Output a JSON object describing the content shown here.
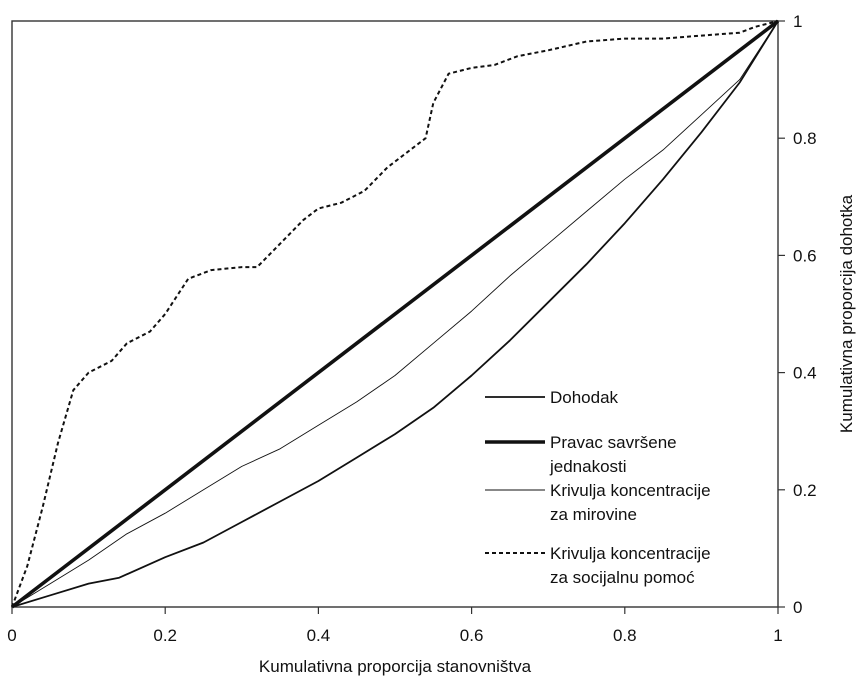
{
  "chart_data": {
    "type": "line",
    "xlabel": "Kumulativna proporcija stanovništva",
    "ylabel": "Kumulativna proporcija dohotka",
    "xlim": [
      0,
      1
    ],
    "ylim": [
      0,
      1
    ],
    "x_ticks": [
      "0",
      "0.2",
      "0.4",
      "0.6",
      "0.8",
      "1"
    ],
    "y_ticks": [
      "0",
      "0.2",
      "0.4",
      "0.6",
      "0.8",
      "1"
    ],
    "y_axis_side": "right",
    "grid": false,
    "legend_position": "bottom-right",
    "series": [
      {
        "name": "Dohodak",
        "style": "solid-medium",
        "points": [
          [
            0,
            0
          ],
          [
            0.05,
            0.02
          ],
          [
            0.1,
            0.04
          ],
          [
            0.14,
            0.05
          ],
          [
            0.2,
            0.085
          ],
          [
            0.25,
            0.11
          ],
          [
            0.3,
            0.145
          ],
          [
            0.35,
            0.18
          ],
          [
            0.4,
            0.215
          ],
          [
            0.45,
            0.255
          ],
          [
            0.5,
            0.295
          ],
          [
            0.55,
            0.34
          ],
          [
            0.6,
            0.395
          ],
          [
            0.65,
            0.455
          ],
          [
            0.7,
            0.52
          ],
          [
            0.75,
            0.585
          ],
          [
            0.8,
            0.655
          ],
          [
            0.85,
            0.73
          ],
          [
            0.9,
            0.81
          ],
          [
            0.95,
            0.895
          ],
          [
            1,
            1
          ]
        ]
      },
      {
        "name": "Pravac savršene jednakosti",
        "legend_lines": [
          "Pravac savršene",
          "jednakosti"
        ],
        "style": "solid-thick",
        "points": [
          [
            0,
            0
          ],
          [
            1,
            1
          ]
        ]
      },
      {
        "name": "Krivulja koncentracije za mirovine",
        "legend_lines": [
          "Krivulja koncentracije",
          "za mirovine"
        ],
        "style": "solid-thin",
        "points": [
          [
            0,
            0
          ],
          [
            0.05,
            0.04
          ],
          [
            0.1,
            0.08
          ],
          [
            0.15,
            0.125
          ],
          [
            0.2,
            0.16
          ],
          [
            0.25,
            0.2
          ],
          [
            0.3,
            0.24
          ],
          [
            0.35,
            0.27
          ],
          [
            0.4,
            0.31
          ],
          [
            0.45,
            0.35
          ],
          [
            0.5,
            0.395
          ],
          [
            0.55,
            0.45
          ],
          [
            0.6,
            0.505
          ],
          [
            0.65,
            0.565
          ],
          [
            0.7,
            0.62
          ],
          [
            0.75,
            0.675
          ],
          [
            0.8,
            0.73
          ],
          [
            0.85,
            0.78
          ],
          [
            0.9,
            0.84
          ],
          [
            0.95,
            0.9
          ],
          [
            1,
            1
          ]
        ]
      },
      {
        "name": "Krivulja koncentracije za socijalnu pomoć",
        "legend_lines": [
          "Krivulja koncentracije",
          "za socijalnu pomoć"
        ],
        "style": "dashed",
        "points": [
          [
            0,
            0
          ],
          [
            0.02,
            0.07
          ],
          [
            0.04,
            0.17
          ],
          [
            0.06,
            0.28
          ],
          [
            0.08,
            0.37
          ],
          [
            0.1,
            0.4
          ],
          [
            0.13,
            0.42
          ],
          [
            0.15,
            0.45
          ],
          [
            0.18,
            0.47
          ],
          [
            0.2,
            0.5
          ],
          [
            0.23,
            0.56
          ],
          [
            0.26,
            0.575
          ],
          [
            0.3,
            0.58
          ],
          [
            0.32,
            0.58
          ],
          [
            0.35,
            0.62
          ],
          [
            0.38,
            0.66
          ],
          [
            0.4,
            0.68
          ],
          [
            0.43,
            0.69
          ],
          [
            0.46,
            0.71
          ],
          [
            0.49,
            0.75
          ],
          [
            0.52,
            0.78
          ],
          [
            0.54,
            0.8
          ],
          [
            0.55,
            0.86
          ],
          [
            0.57,
            0.91
          ],
          [
            0.6,
            0.92
          ],
          [
            0.63,
            0.925
          ],
          [
            0.66,
            0.94
          ],
          [
            0.7,
            0.95
          ],
          [
            0.75,
            0.965
          ],
          [
            0.8,
            0.97
          ],
          [
            0.85,
            0.97
          ],
          [
            0.9,
            0.975
          ],
          [
            0.95,
            0.98
          ],
          [
            0.97,
            0.99
          ],
          [
            1,
            1
          ]
        ]
      }
    ]
  }
}
